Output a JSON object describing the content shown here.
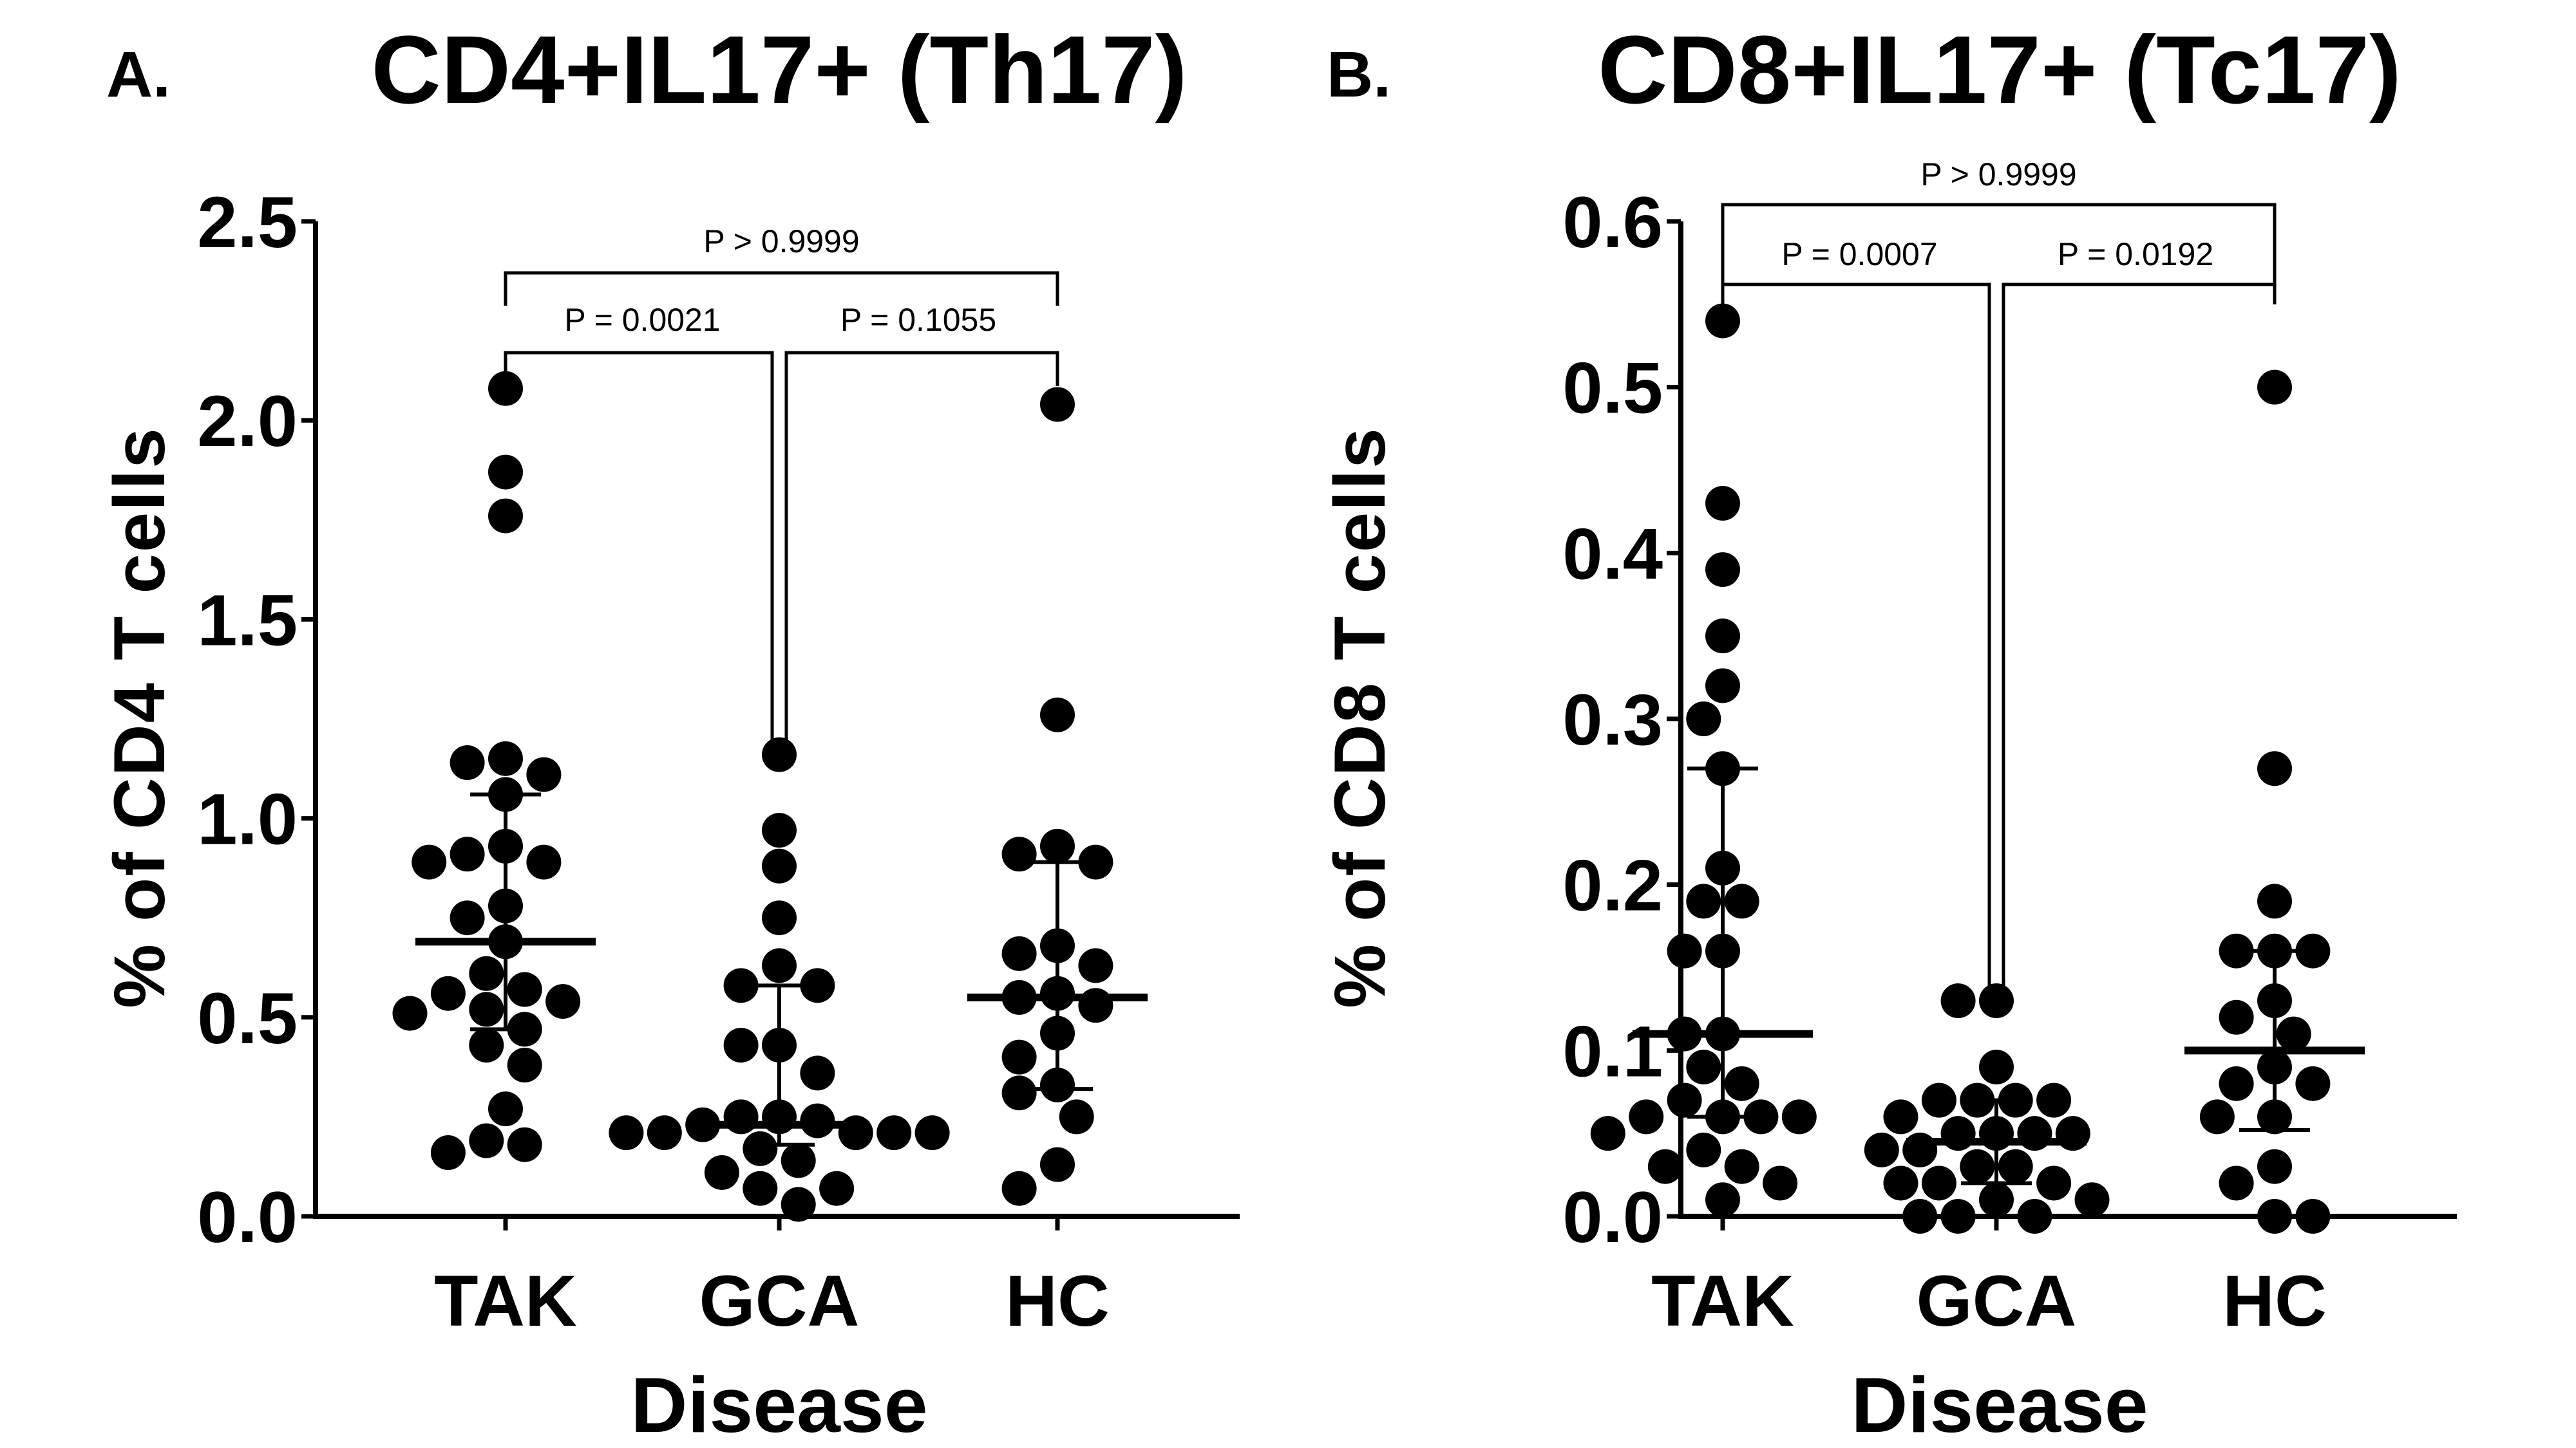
{
  "chart_data": [
    {
      "type": "scatter",
      "panel_letter": "A.",
      "title": "CD4+IL17+ (Th17)",
      "xlabel": "Disease",
      "ylabel": "% of CD4 T cells",
      "ylim": [
        0,
        2.5
      ],
      "yticks": [
        0.0,
        0.5,
        1.0,
        1.5,
        2.0,
        2.5
      ],
      "ytick_labels": [
        "0.0",
        "0.5",
        "1.0",
        "1.5",
        "2.0",
        "2.5"
      ],
      "categories": [
        "TAK",
        "GCA",
        "HC"
      ],
      "grid": false,
      "series": [
        {
          "name": "TAK",
          "values": [
            2.08,
            1.87,
            1.76,
            1.15,
            1.14,
            1.11,
            1.06,
            0.93,
            0.91,
            0.89,
            0.89,
            0.78,
            0.75,
            0.69,
            0.61,
            0.57,
            0.56,
            0.54,
            0.52,
            0.51,
            0.47,
            0.43,
            0.38,
            0.27,
            0.19,
            0.18,
            0.16
          ],
          "mean": 0.69,
          "sd_upper": 1.06,
          "sd_lower": 0.47
        },
        {
          "name": "GCA",
          "values": [
            1.16,
            0.97,
            0.88,
            0.75,
            0.63,
            0.58,
            0.58,
            0.43,
            0.43,
            0.36,
            0.25,
            0.25,
            0.24,
            0.23,
            0.21,
            0.21,
            0.21,
            0.21,
            0.21,
            0.17,
            0.14,
            0.11,
            0.07,
            0.07,
            0.03
          ],
          "mean": 0.23,
          "sd_upper": 0.58,
          "sd_lower": 0.18
        },
        {
          "name": "HC",
          "values": [
            2.04,
            1.26,
            0.93,
            0.91,
            0.89,
            0.68,
            0.66,
            0.63,
            0.56,
            0.55,
            0.53,
            0.46,
            0.4,
            0.33,
            0.31,
            0.25,
            0.13,
            0.07
          ],
          "mean": 0.55,
          "sd_upper": 0.89,
          "sd_lower": 0.32
        }
      ],
      "comparisons": [
        {
          "groups": [
            "TAK",
            "GCA"
          ],
          "label": "P = 0.0021",
          "level": 1
        },
        {
          "groups": [
            "GCA",
            "HC"
          ],
          "label": "P = 0.1055",
          "level": 1
        },
        {
          "groups": [
            "TAK",
            "HC"
          ],
          "label": "P > 0.9999",
          "level": 2
        }
      ]
    },
    {
      "type": "scatter",
      "panel_letter": "B.",
      "title": "CD8+IL17+ (Tc17)",
      "xlabel": "Disease",
      "ylabel": "% of CD8 T cells",
      "ylim": [
        0,
        0.6
      ],
      "yticks": [
        0.0,
        0.1,
        0.2,
        0.3,
        0.4,
        0.5,
        0.6
      ],
      "ytick_labels": [
        "0.0",
        "0.1",
        "0.2",
        "0.3",
        "0.4",
        "0.5",
        "0.6"
      ],
      "categories": [
        "TAK",
        "GCA",
        "HC"
      ],
      "grid": false,
      "series": [
        {
          "name": "TAK",
          "values": [
            0.54,
            0.43,
            0.39,
            0.35,
            0.32,
            0.3,
            0.27,
            0.21,
            0.19,
            0.19,
            0.16,
            0.16,
            0.11,
            0.11,
            0.09,
            0.08,
            0.07,
            0.06,
            0.06,
            0.06,
            0.06,
            0.05,
            0.04,
            0.03,
            0.03,
            0.02,
            0.01
          ],
          "mean": 0.11,
          "sd_upper": 0.27,
          "sd_lower": 0.06
        },
        {
          "name": "GCA",
          "values": [
            0.13,
            0.13,
            0.09,
            0.07,
            0.07,
            0.07,
            0.07,
            0.06,
            0.05,
            0.05,
            0.05,
            0.05,
            0.04,
            0.04,
            0.03,
            0.03,
            0.02,
            0.02,
            0.02,
            0.01,
            0.01,
            0.0,
            0.0,
            0.0
          ],
          "mean": 0.045,
          "sd_upper": 0.07,
          "sd_lower": 0.02
        },
        {
          "name": "HC",
          "values": [
            0.5,
            0.27,
            0.19,
            0.16,
            0.16,
            0.16,
            0.13,
            0.12,
            0.11,
            0.09,
            0.08,
            0.08,
            0.06,
            0.06,
            0.03,
            0.02,
            0.0,
            0.0
          ],
          "mean": 0.1,
          "sd_upper": 0.16,
          "sd_lower": 0.052
        }
      ],
      "comparisons": [
        {
          "groups": [
            "TAK",
            "GCA"
          ],
          "label": "P = 0.0007",
          "level": 1
        },
        {
          "groups": [
            "GCA",
            "HC"
          ],
          "label": "P = 0.0192",
          "level": 1
        },
        {
          "groups": [
            "TAK",
            "HC"
          ],
          "label": "P > 0.9999",
          "level": 2
        }
      ]
    }
  ]
}
